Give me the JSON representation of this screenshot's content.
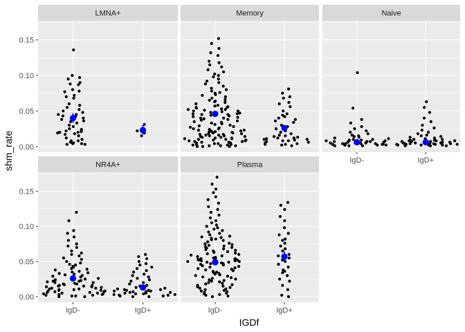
{
  "chart_data": {
    "type": "scatter",
    "subtype": "faceted beeswarm with mean and error bar",
    "xlabel": "IGDf",
    "ylabel": "shm_rate",
    "categories": [
      "IgD-",
      "IgD+"
    ],
    "y_ticks": [
      0.0,
      0.05,
      0.1,
      0.15
    ],
    "y_tick_labels": [
      "0.00",
      "0.05",
      "0.10",
      "0.15"
    ],
    "facet_layout": "3 columns x 2 rows, y scale shared",
    "colors": {
      "points": "#000000",
      "mean": "#0000ff",
      "panel_bg": "#ebebeb",
      "strip_bg": "#d9d9d9",
      "grid": "#ffffff"
    },
    "facets": [
      {
        "name": "LMNA+",
        "ylim": [
          -0.008,
          0.177
        ],
        "groups": [
          {
            "category": "IgD-",
            "mean": 0.04,
            "ci": [
              0.033,
              0.047
            ],
            "y": [
              0.136,
              0.1,
              0.097,
              0.095,
              0.09,
              0.088,
              0.087,
              0.08,
              0.078,
              0.077,
              0.072,
              0.07,
              0.068,
              0.06,
              0.058,
              0.055,
              0.052,
              0.05,
              0.048,
              0.045,
              0.045,
              0.043,
              0.042,
              0.04,
              0.04,
              0.038,
              0.036,
              0.035,
              0.033,
              0.03,
              0.028,
              0.025,
              0.024,
              0.022,
              0.021,
              0.02,
              0.02,
              0.019,
              0.018,
              0.017,
              0.015,
              0.012,
              0.01,
              0.008,
              0.008,
              0.006,
              0.005,
              0.004,
              0.004,
              0.003,
              0.003
            ]
          },
          {
            "category": "IgD+",
            "mean": 0.023,
            "ci": [
              0.017,
              0.03
            ],
            "y": [
              0.031,
              0.022,
              0.019,
              0.015
            ]
          }
        ]
      },
      {
        "name": "Memory",
        "ylim": [
          -0.008,
          0.177
        ],
        "groups": [
          {
            "category": "IgD-",
            "mean": 0.046,
            "ci": [
              0.042,
              0.05
            ],
            "y": [
              0.152,
              0.145,
              0.138,
              0.132,
              0.128,
              0.12,
              0.118,
              0.115,
              0.112,
              0.108,
              0.105,
              0.102,
              0.1,
              0.098,
              0.095,
              0.092,
              0.09,
              0.088,
              0.085,
              0.082,
              0.08,
              0.078,
              0.076,
              0.075,
              0.073,
              0.072,
              0.07,
              0.068,
              0.066,
              0.065,
              0.064,
              0.063,
              0.062,
              0.06,
              0.058,
              0.057,
              0.056,
              0.055,
              0.055,
              0.054,
              0.053,
              0.052,
              0.052,
              0.051,
              0.05,
              0.05,
              0.049,
              0.048,
              0.047,
              0.046,
              0.046,
              0.045,
              0.045,
              0.044,
              0.043,
              0.042,
              0.041,
              0.04,
              0.04,
              0.039,
              0.038,
              0.037,
              0.036,
              0.035,
              0.034,
              0.033,
              0.032,
              0.031,
              0.03,
              0.029,
              0.028,
              0.027,
              0.026,
              0.025,
              0.025,
              0.024,
              0.023,
              0.023,
              0.022,
              0.022,
              0.021,
              0.021,
              0.02,
              0.02,
              0.019,
              0.019,
              0.018,
              0.018,
              0.017,
              0.017,
              0.016,
              0.016,
              0.015,
              0.015,
              0.014,
              0.014,
              0.013,
              0.013,
              0.012,
              0.012,
              0.011,
              0.011,
              0.01,
              0.01,
              0.009,
              0.009,
              0.008,
              0.008,
              0.007,
              0.007,
              0.006,
              0.006,
              0.005,
              0.005,
              0.004,
              0.004,
              0.003,
              0.003,
              0.002,
              0.002,
              0.001,
              0.001,
              0.001,
              0.0,
              0.0,
              0.0
            ]
          },
          {
            "category": "IgD+",
            "mean": 0.026,
            "ci": [
              0.022,
              0.03
            ],
            "y": [
              0.081,
              0.075,
              0.07,
              0.068,
              0.062,
              0.06,
              0.056,
              0.05,
              0.046,
              0.044,
              0.042,
              0.04,
              0.038,
              0.036,
              0.034,
              0.03,
              0.028,
              0.025,
              0.022,
              0.02,
              0.018,
              0.016,
              0.015,
              0.014,
              0.013,
              0.012,
              0.012,
              0.011,
              0.01,
              0.01,
              0.009,
              0.008,
              0.008,
              0.007,
              0.006,
              0.005,
              0.004,
              0.003,
              0.003,
              0.002,
              0.001
            ]
          }
        ]
      },
      {
        "name": "Naive",
        "ylim": [
          -0.008,
          0.177
        ],
        "groups": [
          {
            "category": "IgD-",
            "mean": 0.006,
            "ci": [
              0.0055,
              0.0065
            ],
            "y": [
              0.104,
              0.054,
              0.038,
              0.033,
              0.028,
              0.025,
              0.022,
              0.02,
              0.018,
              0.016,
              0.015,
              0.014,
              0.013,
              0.012,
              0.011,
              0.01,
              0.01,
              0.009,
              0.009,
              0.008,
              0.008,
              0.008,
              0.007,
              0.007,
              0.007,
              0.006,
              0.006,
              0.006,
              0.006,
              0.005,
              0.005,
              0.005,
              0.005,
              0.004,
              0.004,
              0.004,
              0.004,
              0.003,
              0.003,
              0.003,
              0.003,
              0.002,
              0.002,
              0.002,
              0.002,
              0.001,
              0.001,
              0.001
            ]
          },
          {
            "category": "IgD+",
            "mean": 0.006,
            "ci": [
              0.0055,
              0.0065
            ],
            "y": [
              0.063,
              0.055,
              0.048,
              0.04,
              0.035,
              0.03,
              0.026,
              0.023,
              0.02,
              0.018,
              0.016,
              0.015,
              0.014,
              0.013,
              0.012,
              0.011,
              0.01,
              0.01,
              0.009,
              0.009,
              0.008,
              0.008,
              0.008,
              0.007,
              0.007,
              0.007,
              0.006,
              0.006,
              0.006,
              0.006,
              0.005,
              0.005,
              0.005,
              0.005,
              0.004,
              0.004,
              0.004,
              0.004,
              0.003,
              0.003,
              0.003,
              0.003,
              0.002,
              0.002,
              0.002,
              0.002,
              0.001,
              0.001,
              0.001
            ]
          }
        ]
      },
      {
        "name": "NR4A+",
        "ylim": [
          -0.008,
          0.177
        ],
        "groups": [
          {
            "category": "IgD-",
            "mean": 0.026,
            "ci": [
              0.023,
              0.029
            ],
            "y": [
              0.12,
              0.108,
              0.094,
              0.09,
              0.085,
              0.08,
              0.075,
              0.072,
              0.07,
              0.065,
              0.062,
              0.06,
              0.058,
              0.055,
              0.053,
              0.05,
              0.048,
              0.046,
              0.045,
              0.043,
              0.042,
              0.04,
              0.039,
              0.038,
              0.036,
              0.035,
              0.034,
              0.033,
              0.032,
              0.031,
              0.03,
              0.029,
              0.028,
              0.027,
              0.026,
              0.025,
              0.025,
              0.024,
              0.023,
              0.022,
              0.022,
              0.021,
              0.02,
              0.02,
              0.019,
              0.018,
              0.018,
              0.017,
              0.016,
              0.016,
              0.015,
              0.015,
              0.014,
              0.014,
              0.013,
              0.012,
              0.012,
              0.011,
              0.011,
              0.01,
              0.01,
              0.009,
              0.009,
              0.008,
              0.008,
              0.007,
              0.007,
              0.006,
              0.006,
              0.005,
              0.005,
              0.004,
              0.004,
              0.003,
              0.003,
              0.002,
              0.002,
              0.001,
              0.001,
              0.0,
              0.0
            ]
          },
          {
            "category": "IgD+",
            "mean": 0.013,
            "ci": [
              0.011,
              0.015
            ],
            "y": [
              0.06,
              0.057,
              0.054,
              0.05,
              0.047,
              0.045,
              0.042,
              0.04,
              0.037,
              0.035,
              0.032,
              0.03,
              0.028,
              0.026,
              0.024,
              0.022,
              0.02,
              0.018,
              0.016,
              0.015,
              0.014,
              0.013,
              0.012,
              0.011,
              0.01,
              0.01,
              0.009,
              0.009,
              0.008,
              0.008,
              0.007,
              0.007,
              0.006,
              0.006,
              0.005,
              0.005,
              0.004,
              0.004,
              0.003,
              0.003,
              0.002,
              0.002,
              0.001,
              0.001,
              0.0,
              0.0
            ]
          }
        ]
      },
      {
        "name": "Plasma",
        "ylim": [
          -0.008,
          0.177
        ],
        "groups": [
          {
            "category": "IgD-",
            "mean": 0.049,
            "ci": [
              0.046,
              0.052
            ],
            "y": [
              0.17,
              0.16,
              0.153,
              0.148,
              0.142,
              0.138,
              0.133,
              0.128,
              0.124,
              0.12,
              0.116,
              0.112,
              0.108,
              0.105,
              0.102,
              0.1,
              0.098,
              0.096,
              0.094,
              0.092,
              0.09,
              0.088,
              0.086,
              0.085,
              0.084,
              0.083,
              0.082,
              0.081,
              0.08,
              0.078,
              0.076,
              0.075,
              0.074,
              0.073,
              0.072,
              0.071,
              0.07,
              0.069,
              0.068,
              0.067,
              0.066,
              0.065,
              0.064,
              0.063,
              0.062,
              0.061,
              0.06,
              0.059,
              0.058,
              0.057,
              0.056,
              0.055,
              0.055,
              0.054,
              0.054,
              0.053,
              0.053,
              0.052,
              0.052,
              0.051,
              0.051,
              0.05,
              0.05,
              0.049,
              0.049,
              0.048,
              0.048,
              0.047,
              0.047,
              0.046,
              0.045,
              0.044,
              0.043,
              0.042,
              0.041,
              0.04,
              0.039,
              0.038,
              0.037,
              0.036,
              0.035,
              0.034,
              0.033,
              0.032,
              0.031,
              0.03,
              0.029,
              0.028,
              0.027,
              0.026,
              0.025,
              0.024,
              0.023,
              0.022,
              0.021,
              0.02,
              0.019,
              0.018,
              0.017,
              0.016,
              0.015,
              0.014,
              0.013,
              0.012,
              0.011,
              0.01,
              0.009,
              0.008,
              0.007,
              0.006,
              0.005,
              0.004,
              0.003,
              0.002,
              0.001,
              0.0
            ]
          },
          {
            "category": "IgD+",
            "mean": 0.057,
            "ci": [
              0.05,
              0.064
            ],
            "y": [
              0.134,
              0.13,
              0.124,
              0.114,
              0.108,
              0.098,
              0.09,
              0.088,
              0.082,
              0.08,
              0.076,
              0.072,
              0.068,
              0.065,
              0.06,
              0.058,
              0.055,
              0.052,
              0.05,
              0.046,
              0.042,
              0.038,
              0.036,
              0.034,
              0.03,
              0.025,
              0.022,
              0.016,
              0.01,
              0.002,
              0.0
            ]
          }
        ]
      }
    ]
  }
}
